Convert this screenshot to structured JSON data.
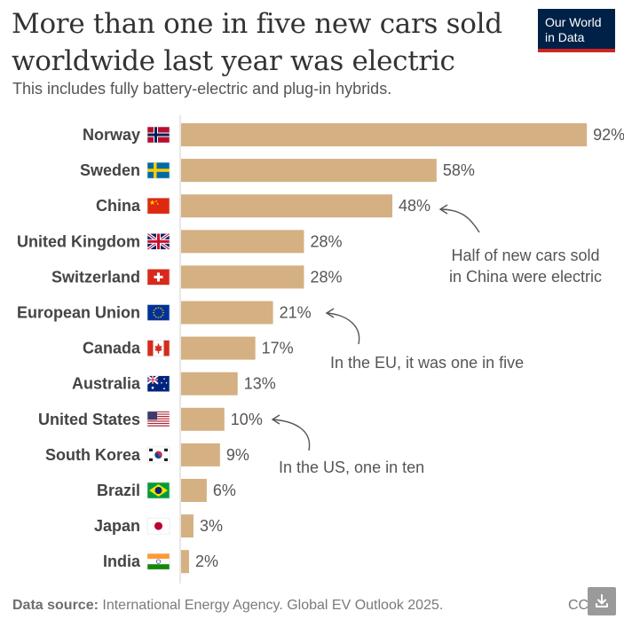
{
  "header": {
    "title": "More than one in five new cars sold worldwide last year was electric",
    "subtitle": "This includes fully battery-electric and plug-in hybrids."
  },
  "logo": {
    "line1": "Our World",
    "line2": "in Data"
  },
  "footer": {
    "source_label": "Data source:",
    "source_text": "International Energy Agency. Global EV Outlook 2025.",
    "license": "CC"
  },
  "download_button": {
    "icon": "download-icon"
  },
  "colors": {
    "bar": "#d4b083",
    "text": "#555555",
    "label": "#444444",
    "brand": "#002147",
    "accent": "#ce261e"
  },
  "chart_data": {
    "type": "bar",
    "orientation": "horizontal",
    "title": "More than one in five new cars sold worldwide last year was electric",
    "unit": "%",
    "xlim": [
      0,
      100
    ],
    "grid": false,
    "categories": [
      "Norway",
      "Sweden",
      "China",
      "United Kingdom",
      "Switzerland",
      "European Union",
      "Canada",
      "Australia",
      "United States",
      "South Korea",
      "Brazil",
      "Japan",
      "India"
    ],
    "flags": [
      "norway-flag-icon",
      "sweden-flag-icon",
      "china-flag-icon",
      "uk-flag-icon",
      "switzerland-flag-icon",
      "eu-flag-icon",
      "canada-flag-icon",
      "australia-flag-icon",
      "usa-flag-icon",
      "south-korea-flag-icon",
      "brazil-flag-icon",
      "japan-flag-icon",
      "india-flag-icon"
    ],
    "values": [
      92,
      58,
      48,
      28,
      28,
      21,
      17,
      13,
      10,
      9,
      6,
      3,
      2
    ],
    "value_labels": [
      "92%",
      "58%",
      "48%",
      "28%",
      "28%",
      "21%",
      "17%",
      "13%",
      "10%",
      "9%",
      "6%",
      "3%",
      "2%"
    ],
    "annotations": [
      {
        "target": "China",
        "lines": [
          "Half of new cars sold",
          "in China were electric"
        ]
      },
      {
        "target": "European Union",
        "lines": [
          "In the EU, it was one in five"
        ]
      },
      {
        "target": "United States",
        "lines": [
          "In the US, one in ten"
        ]
      }
    ]
  }
}
